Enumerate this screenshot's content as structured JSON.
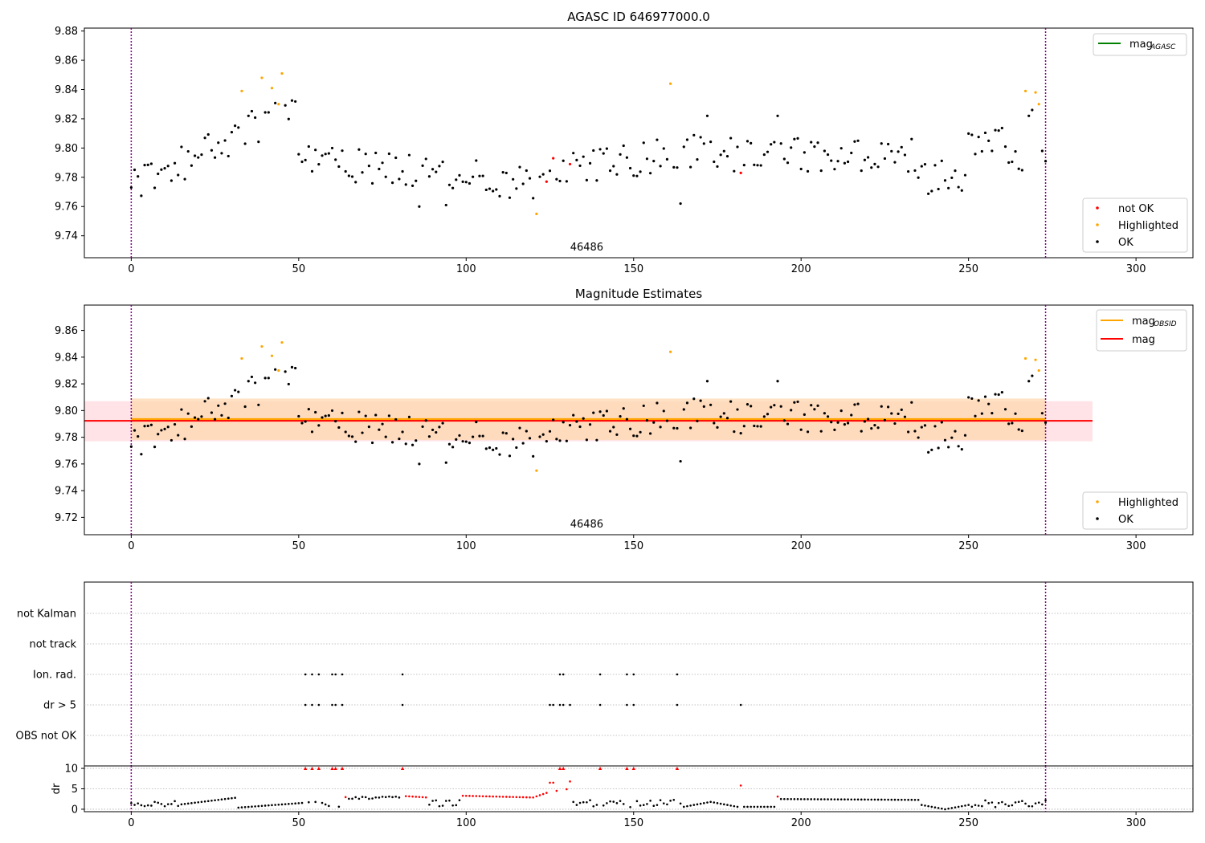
{
  "chart_data": [
    {
      "type": "scatter",
      "title": "AGASC ID 646977000.0",
      "xlim": [
        -14,
        317
      ],
      "ylim": [
        9.725,
        9.882
      ],
      "xticks": [
        0,
        50,
        100,
        150,
        200,
        250,
        300
      ],
      "yticks": [
        9.74,
        9.76,
        9.78,
        9.8,
        9.82,
        9.84,
        9.86,
        9.88
      ],
      "yticklabels": [
        "9.74",
        "9.76",
        "9.78",
        "9.80",
        "9.82",
        "9.84",
        "9.86",
        "9.88"
      ],
      "obsid_label": "46486",
      "obsid_label_x": 136,
      "obs_boundaries": [
        0,
        273
      ],
      "legend_upper": [
        {
          "label": "mag",
          "sub": "AGASC",
          "color": "#008000",
          "kind": "line"
        }
      ],
      "legend_lower": [
        {
          "label": "not OK",
          "color": "#ff0000",
          "kind": "marker"
        },
        {
          "label": "Highlighted",
          "color": "#ffa500",
          "kind": "marker"
        },
        {
          "label": "OK",
          "color": "#000000",
          "kind": "marker"
        }
      ],
      "colors": {
        "ok": "#000000",
        "highlighted": "#ffa500",
        "not_ok": "#ff0000",
        "boundary": "#800080"
      }
    },
    {
      "type": "scatter",
      "title": "Magnitude Estimates",
      "xlim": [
        -14,
        317
      ],
      "ylim": [
        9.707,
        9.879
      ],
      "xticks": [
        0,
        50,
        100,
        150,
        200,
        250,
        300
      ],
      "yticks": [
        9.72,
        9.74,
        9.76,
        9.78,
        9.8,
        9.82,
        9.84,
        9.86
      ],
      "yticklabels": [
        "9.72",
        "9.74",
        "9.76",
        "9.78",
        "9.80",
        "9.82",
        "9.84",
        "9.86"
      ],
      "obsid_label": "46486",
      "obsid_label_x": 136,
      "obs_boundaries": [
        0,
        273
      ],
      "mag": 9.7923,
      "mag_band": [
        9.777,
        9.807
      ],
      "mag_band_x": [
        -14,
        287
      ],
      "mag_obsid": 9.7935,
      "mag_obsid_band": [
        9.778,
        9.809
      ],
      "mag_obsid_band_x": [
        0,
        273
      ],
      "legend_upper": [
        {
          "label": "mag",
          "sub": "OBSID",
          "color": "#ffa500",
          "kind": "line"
        },
        {
          "label": "mag",
          "sub": "",
          "color": "#ff0000",
          "kind": "line"
        }
      ],
      "legend_lower": [
        {
          "label": "Highlighted",
          "color": "#ffa500",
          "kind": "marker"
        },
        {
          "label": "OK",
          "color": "#000000",
          "kind": "marker"
        }
      ],
      "colors": {
        "ok": "#000000",
        "highlighted": "#ffa500",
        "mag": "#ff0000",
        "mag_obsid": "#ffa500",
        "band_mag": "#ffd1d6",
        "band_obsid": "#ffd8b0"
      }
    },
    {
      "type": "scatter",
      "title": "",
      "xlim": [
        -14,
        317
      ],
      "flag_rows": [
        "not Kalman",
        "not track",
        "Ion. rad.",
        "dr > 5",
        "OBS not OK"
      ],
      "ion_rad_x": [
        52,
        54,
        56,
        60,
        61,
        63,
        81,
        128,
        129,
        140,
        148,
        150,
        163
      ],
      "dr5_x": [
        52,
        54,
        56,
        60,
        61,
        63,
        81,
        125,
        126,
        128,
        129,
        131,
        140,
        148,
        150,
        163,
        182
      ],
      "obs_boundaries": [
        0,
        273
      ]
    },
    {
      "type": "scatter",
      "title": "",
      "ylabel": "dr",
      "xlim": [
        -14,
        317
      ],
      "ylim": [
        -0.6,
        10.6
      ],
      "xticks": [
        0,
        50,
        100,
        150,
        200,
        250,
        300
      ],
      "yticks": [
        0,
        5,
        10
      ],
      "dr_clip": 10,
      "obs_boundaries": [
        0,
        273
      ],
      "colors": {
        "ok": "#000000",
        "bad": "#ff0000"
      }
    }
  ]
}
